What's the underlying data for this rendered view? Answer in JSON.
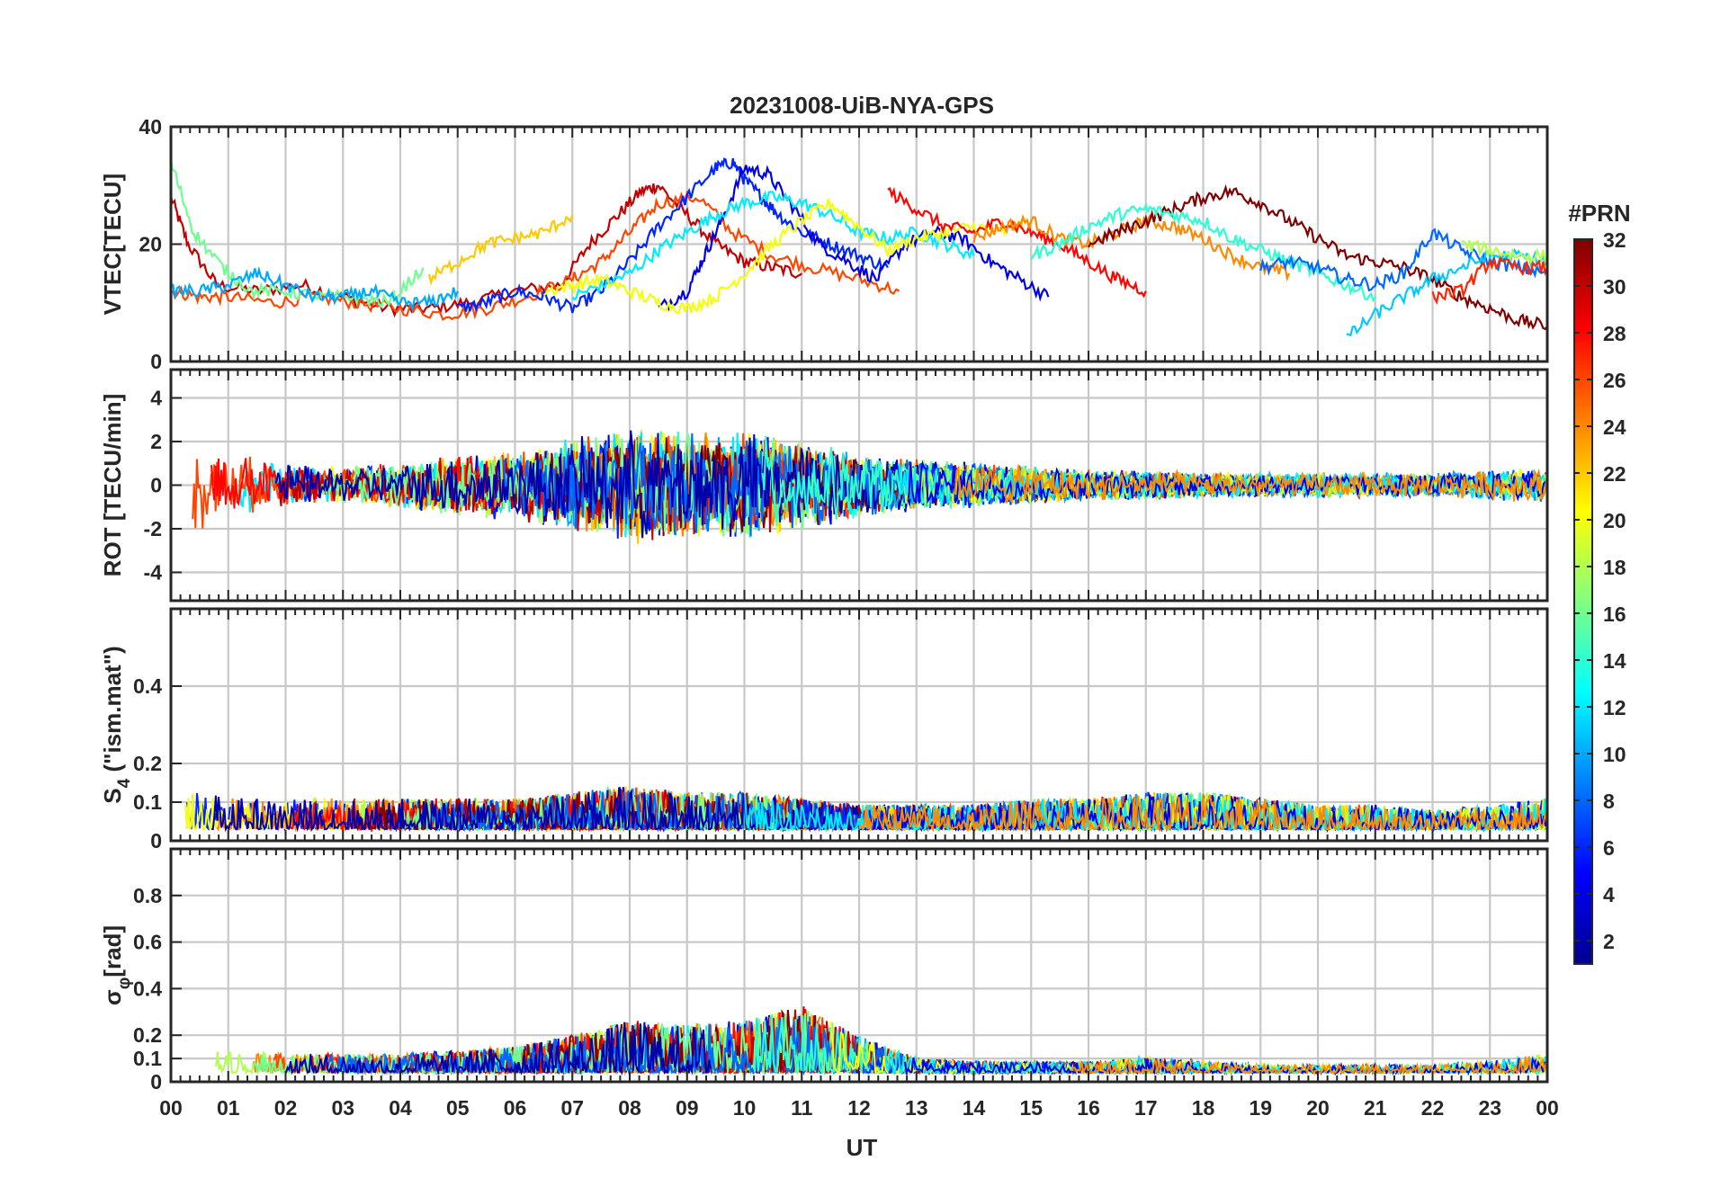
{
  "colors": {
    "colormap": [
      "#00008f",
      "#0000ff",
      "#0080ff",
      "#00ffff",
      "#80ff80",
      "#ffff00",
      "#ff8000",
      "#ff0000",
      "#800000"
    ],
    "axes": "#262626",
    "grid": "#c8c8c8"
  },
  "chart_data": {
    "type": "line",
    "title": "20231008-UiB-NYA-GPS",
    "xlabel": "UT",
    "x_range_hours": [
      0,
      24
    ],
    "x_ticks": [
      "00",
      "01",
      "02",
      "03",
      "04",
      "05",
      "06",
      "07",
      "08",
      "09",
      "10",
      "11",
      "12",
      "13",
      "14",
      "15",
      "16",
      "17",
      "18",
      "19",
      "20",
      "21",
      "22",
      "23",
      "00"
    ],
    "colorbar": {
      "label": "#PRN",
      "range": [
        1,
        32
      ],
      "tick_labels": [
        "2",
        "4",
        "6",
        "8",
        "10",
        "12",
        "14",
        "16",
        "18",
        "20",
        "22",
        "24",
        "26",
        "28",
        "30",
        "32"
      ]
    },
    "panels": [
      {
        "id": "vtec",
        "ylabel": "VTEC[TECU]",
        "ylim": [
          0,
          40
        ],
        "y_ticks": [
          {
            "v": 0,
            "t": "0"
          },
          {
            "v": 20,
            "t": "20"
          },
          {
            "v": 40,
            "t": "40"
          }
        ],
        "series": [
          {
            "prn": 30,
            "x": [
              0.0,
              0.3,
              0.8,
              1.5,
              2.3,
              3.0,
              3.8,
              4.5,
              5.2,
              6.0,
              6.8,
              7.3,
              7.8,
              8.2,
              8.5,
              9.0,
              9.5,
              10.0,
              10.5,
              11.0
            ],
            "y": [
              28,
              20,
              13,
              12,
              13,
              11,
              9,
              9,
              10,
              12,
              13,
              20,
              25,
              29,
              30,
              25,
              20,
              17,
              16,
              15
            ]
          },
          {
            "prn": 26,
            "x": [
              0.0,
              0.5,
              1.0,
              1.8,
              2.5,
              3.2,
              4.0,
              4.8,
              5.5,
              6.2,
              7.0,
              7.5,
              8.0,
              8.5,
              9.2,
              9.8,
              10.5,
              11.2,
              12.0,
              12.7
            ],
            "y": [
              12,
              11,
              11,
              10,
              11,
              10,
              9,
              8,
              9,
              11,
              14,
              17,
              22,
              27,
              28,
              22,
              18,
              16,
              14,
              12
            ]
          },
          {
            "prn": 6,
            "x": [
              5.0,
              5.5,
              6.0,
              6.5,
              7.0,
              7.5,
              8.0,
              8.5,
              9.0,
              9.5,
              9.8,
              10.0,
              10.3,
              10.6,
              11.0,
              11.5,
              12.0,
              12.5
            ],
            "y": [
              9,
              10,
              12,
              11,
              9,
              12,
              17,
              23,
              28,
              33,
              34,
              31,
              28,
              25,
              22,
              20,
              18,
              16
            ]
          },
          {
            "prn": 4,
            "x": [
              8.5,
              9.0,
              9.3,
              9.6,
              10.0,
              10.4,
              10.8,
              11.3,
              11.8,
              12.3,
              12.8,
              13.3,
              13.8,
              14.3,
              14.8,
              15.3
            ],
            "y": [
              9,
              12,
              18,
              24,
              33,
              32,
              27,
              20,
              17,
              14,
              20,
              22,
              21,
              17,
              14,
              11
            ]
          },
          {
            "prn": 12,
            "x": [
              7.0,
              7.5,
              8.0,
              8.5,
              9.0,
              9.5,
              10.0,
              10.5,
              11.0,
              11.5,
              12.0,
              12.5,
              13.0,
              13.5,
              14.0
            ],
            "y": [
              11,
              13,
              15,
              19,
              22,
              25,
              27,
              28,
              27,
              25,
              22,
              21,
              22,
              20,
              18
            ]
          },
          {
            "prn": 20,
            "x": [
              6.5,
              7.0,
              7.5,
              8.0,
              8.5,
              9.0,
              9.5,
              10.0,
              10.5,
              11.0,
              11.5,
              12.0,
              12.5,
              13.0,
              13.5,
              14.0,
              14.5,
              15.0
            ],
            "y": [
              12,
              13,
              14,
              12,
              10,
              9,
              11,
              15,
              20,
              24,
              27,
              23,
              19,
              21,
              22,
              23,
              22,
              24
            ]
          },
          {
            "prn": 28,
            "x": [
              12.5,
              13.0,
              13.5,
              14.0,
              14.5,
              15.0,
              15.5,
              16.0,
              16.5,
              17.0
            ],
            "y": [
              29,
              26,
              23,
              22,
              24,
              22,
              20,
              17,
              14,
              12
            ]
          },
          {
            "prn": 24,
            "x": [
              14.0,
              14.5,
              15.0,
              15.5,
              16.0,
              16.5,
              17.0,
              17.5,
              18.0,
              18.5,
              19.0,
              19.5
            ],
            "y": [
              21,
              23,
              24,
              21,
              20,
              22,
              24,
              23,
              21,
              18,
              16,
              15
            ]
          },
          {
            "prn": 32,
            "x": [
              16.0,
              16.5,
              17.0,
              17.5,
              18.0,
              18.5,
              19.0,
              19.5,
              20.0,
              20.5,
              21.0,
              21.5,
              22.0,
              22.5,
              23.0,
              23.5,
              24.0
            ],
            "y": [
              20,
              22,
              24,
              26,
              28,
              29,
              27,
              24,
              21,
              18,
              17,
              16,
              14,
              11,
              9,
              7,
              6
            ]
          },
          {
            "prn": 14,
            "x": [
              15.0,
              15.5,
              16.0,
              16.5,
              17.0,
              17.5,
              18.0,
              18.5,
              19.0,
              19.5,
              20.0,
              20.5,
              21.0
            ],
            "y": [
              18,
              20,
              23,
              25,
              26,
              25,
              24,
              21,
              19,
              17,
              15,
              13,
              11
            ]
          },
          {
            "prn": 8,
            "x": [
              19.0,
              19.5,
              20.0,
              20.5,
              21.0,
              21.5,
              22.0,
              22.5,
              23.0,
              23.5,
              24.0
            ],
            "y": [
              16,
              17,
              16,
              14,
              13,
              15,
              22,
              19,
              17,
              16,
              15
            ]
          },
          {
            "prn": 16,
            "x": [
              0.0,
              0.4,
              0.9,
              1.4,
              2.0,
              2.6,
              3.2,
              3.8,
              4.4
            ],
            "y": [
              34,
              22,
              16,
              12,
              12,
              11,
              11,
              10,
              16
            ]
          },
          {
            "prn": 10,
            "x": [
              0.0,
              0.5,
              1.0,
              1.5,
              2.0,
              2.5,
              3.0,
              3.5,
              4.0,
              4.5,
              5.0
            ],
            "y": [
              12,
              12,
              13,
              15,
              13,
              11,
              11,
              12,
              10,
              10,
              12
            ]
          },
          {
            "prn": 22,
            "x": [
              4.5,
              5.0,
              5.5,
              6.0,
              6.5,
              7.0
            ],
            "y": [
              14,
              17,
              20,
              21,
              22,
              25
            ]
          },
          {
            "prn": 11,
            "x": [
              20.5,
              21.0,
              21.5,
              22.0,
              22.5,
              23.0,
              23.5,
              24.0
            ],
            "y": [
              4,
              8,
              11,
              14,
              16,
              18,
              18,
              17
            ]
          },
          {
            "prn": 18,
            "x": [
              22.5,
              23.0,
              23.5,
              24.0
            ],
            "y": [
              20,
              19,
              18,
              18
            ]
          },
          {
            "prn": 27,
            "x": [
              22.0,
              22.5,
              23.0,
              23.5,
              24.0
            ],
            "y": [
              11,
              12,
              17,
              16,
              16
            ]
          }
        ]
      },
      {
        "id": "rot",
        "ylabel": "ROT [TECU/min]",
        "ylim": [
          -5.3,
          5.3
        ],
        "y_ticks": [
          {
            "v": -4,
            "t": "-4"
          },
          {
            "v": -2,
            "t": "-2"
          },
          {
            "v": 0,
            "t": "0"
          },
          {
            "v": 2,
            "t": "2"
          },
          {
            "v": 4,
            "t": "4"
          }
        ],
        "noise_envelope": {
          "hours": [
            0,
            1,
            2,
            3,
            4,
            5,
            6,
            7,
            8,
            9,
            10,
            11,
            12,
            13,
            14,
            15,
            16,
            17,
            18,
            19,
            20,
            21,
            22,
            23,
            24
          ],
          "amplitude": [
            2.5,
            1.3,
            0.9,
            0.7,
            0.9,
            1.3,
            1.4,
            1.8,
            2.3,
            2.2,
            2.2,
            1.8,
            1.3,
            1.0,
            0.9,
            0.8,
            0.6,
            0.6,
            0.5,
            0.5,
            0.5,
            0.5,
            0.5,
            0.6,
            0.7
          ]
        }
      },
      {
        "id": "s4",
        "ylabel": "S4 (\"ism.mat\")",
        "ylabel_main": "S",
        "ylabel_sub": "4",
        "ylabel_rest": " (\"ism.mat\")",
        "ylim": [
          0,
          0.6
        ],
        "y_ticks": [
          {
            "v": 0,
            "t": "0"
          },
          {
            "v": 0.1,
            "t": "0.1"
          },
          {
            "v": 0.2,
            "t": "0.2"
          },
          {
            "v": 0.4,
            "t": "0.4"
          }
        ],
        "baseline": 0.03,
        "noise_envelope": {
          "hours": [
            0,
            1,
            2,
            3,
            4,
            5,
            6,
            7,
            8,
            9,
            10,
            11,
            12,
            13,
            14,
            15,
            16,
            17,
            18,
            19,
            20,
            21,
            22,
            23,
            24
          ],
          "amplitude": [
            0.08,
            0.05,
            0.05,
            0.05,
            0.05,
            0.05,
            0.05,
            0.06,
            0.07,
            0.06,
            0.06,
            0.05,
            0.04,
            0.04,
            0.04,
            0.05,
            0.05,
            0.06,
            0.06,
            0.05,
            0.04,
            0.04,
            0.03,
            0.04,
            0.05
          ]
        }
      },
      {
        "id": "sigma",
        "ylabel": "σφ[rad]",
        "ylabel_main": "σ",
        "ylabel_sub": "φ",
        "ylabel_rest": "[rad]",
        "ylim": [
          0,
          1.0
        ],
        "y_ticks": [
          {
            "v": 0,
            "t": "0"
          },
          {
            "v": 0.1,
            "t": "0.1"
          },
          {
            "v": 0.2,
            "t": "0.2"
          },
          {
            "v": 0.4,
            "t": "0.4"
          },
          {
            "v": 0.6,
            "t": "0.6"
          },
          {
            "v": 0.8,
            "t": "0.8"
          }
        ],
        "baseline": 0.04,
        "noise_envelope": {
          "hours": [
            0,
            1,
            2,
            3,
            4,
            5,
            6,
            7,
            8,
            9,
            10,
            11,
            12,
            13,
            14,
            15,
            16,
            17,
            18,
            19,
            20,
            21,
            22,
            23,
            24
          ],
          "amplitude": [
            0.1,
            0.06,
            0.05,
            0.05,
            0.05,
            0.06,
            0.07,
            0.1,
            0.14,
            0.13,
            0.14,
            0.18,
            0.1,
            0.04,
            0.03,
            0.03,
            0.03,
            0.04,
            0.03,
            0.02,
            0.02,
            0.02,
            0.02,
            0.03,
            0.05
          ]
        }
      }
    ]
  }
}
